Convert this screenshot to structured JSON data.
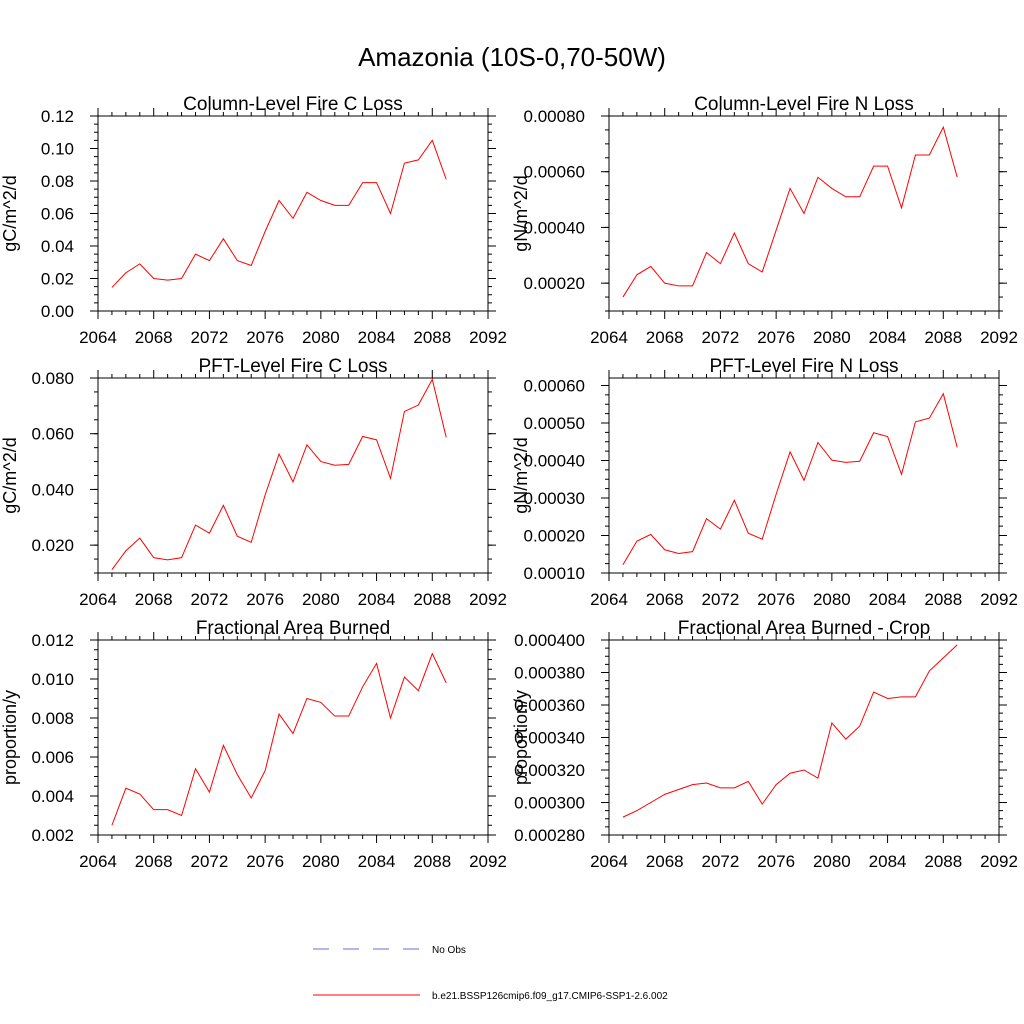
{
  "figure_title": "Amazonia (10S-0,70-50W)",
  "colors": {
    "model_line": "#ff0000",
    "obs_line": "#6b6bd6"
  },
  "legend": {
    "items": [
      {
        "label": "No Obs",
        "style": "dashed",
        "color": "#6b6bd6"
      },
      {
        "label": "b.e21.BSSP126cmip6.f09_g17.CMIP6-SSP1-2.6.002",
        "style": "solid",
        "color": "#ff0000"
      }
    ]
  },
  "chart_data": [
    {
      "type": "line",
      "title": "Column-Level Fire C Loss",
      "xlabel": "",
      "ylabel": "gC/m^2/d",
      "xlim": [
        2064,
        2092
      ],
      "ylim": [
        0,
        0.12
      ],
      "xticks": [
        "2064",
        "2068",
        "2072",
        "2076",
        "2080",
        "2084",
        "2088",
        "2092"
      ],
      "yticks": [
        "0.00",
        "0.02",
        "0.04",
        "0.06",
        "0.08",
        "0.10",
        "0.12"
      ],
      "x": [
        2065,
        2066,
        2067,
        2068,
        2069,
        2070,
        2071,
        2072,
        2073,
        2074,
        2075,
        2076,
        2077,
        2078,
        2079,
        2080,
        2081,
        2082,
        2083,
        2084,
        2085,
        2086,
        2087,
        2088,
        2089
      ],
      "series": [
        {
          "name": "b.e21.BSSP126cmip6.f09_g17.CMIP6-SSP1-2.6.002",
          "values": [
            0.0145,
            0.0235,
            0.029,
            0.02,
            0.019,
            0.02,
            0.035,
            0.031,
            0.0445,
            0.031,
            0.028,
            0.049,
            0.068,
            0.057,
            0.073,
            0.068,
            0.065,
            0.065,
            0.079,
            0.079,
            0.06,
            0.091,
            0.093,
            0.105,
            0.081
          ]
        }
      ]
    },
    {
      "type": "line",
      "title": "Column-Level Fire N Loss",
      "xlabel": "",
      "ylabel": "gN/m^2/d",
      "xlim": [
        2064,
        2092
      ],
      "ylim": [
        0.0001,
        0.0008
      ],
      "xticks": [
        "2064",
        "2068",
        "2072",
        "2076",
        "2080",
        "2084",
        "2088",
        "2092"
      ],
      "yticks": [
        "0.00020",
        "0.00040",
        "0.00060",
        "0.00080"
      ],
      "ytick_values": [
        0.0002,
        0.0004,
        0.0006,
        0.0008
      ],
      "x": [
        2065,
        2066,
        2067,
        2068,
        2069,
        2070,
        2071,
        2072,
        2073,
        2074,
        2075,
        2076,
        2077,
        2078,
        2079,
        2080,
        2081,
        2082,
        2083,
        2084,
        2085,
        2086,
        2087,
        2088,
        2089
      ],
      "series": [
        {
          "name": "b.e21.BSSP126cmip6.f09_g17.CMIP6-SSP1-2.6.002",
          "values": [
            0.00015,
            0.00023,
            0.00026,
            0.0002,
            0.00019,
            0.00019,
            0.00031,
            0.00027,
            0.00038,
            0.00027,
            0.00024,
            0.00039,
            0.00054,
            0.00045,
            0.00058,
            0.00054,
            0.00051,
            0.00051,
            0.00062,
            0.00062,
            0.00047,
            0.00066,
            0.00066,
            0.00076,
            0.00058
          ]
        }
      ]
    },
    {
      "type": "line",
      "title": "PFT-Level Fire C Loss",
      "xlabel": "",
      "ylabel": "gC/m^2/d",
      "xlim": [
        2064,
        2092
      ],
      "ylim": [
        0.01,
        0.08
      ],
      "xticks": [
        "2064",
        "2068",
        "2072",
        "2076",
        "2080",
        "2084",
        "2088",
        "2092"
      ],
      "yticks": [
        "0.020",
        "0.040",
        "0.060",
        "0.080"
      ],
      "ytick_values": [
        0.02,
        0.04,
        0.06,
        0.08
      ],
      "x": [
        2065,
        2066,
        2067,
        2068,
        2069,
        2070,
        2071,
        2072,
        2073,
        2074,
        2075,
        2076,
        2077,
        2078,
        2079,
        2080,
        2081,
        2082,
        2083,
        2084,
        2085,
        2086,
        2087,
        2088,
        2089
      ],
      "series": [
        {
          "name": "b.e21.BSSP126cmip6.f09_g17.CMIP6-SSP1-2.6.002",
          "values": [
            0.0112,
            0.018,
            0.0225,
            0.0155,
            0.0147,
            0.0155,
            0.0272,
            0.0243,
            0.0343,
            0.0232,
            0.021,
            0.038,
            0.0527,
            0.0427,
            0.056,
            0.05,
            0.0487,
            0.049,
            0.059,
            0.0578,
            0.044,
            0.068,
            0.0703,
            0.0795,
            0.0587
          ]
        }
      ]
    },
    {
      "type": "line",
      "title": "PFT-Level Fire N Loss",
      "xlabel": "",
      "ylabel": "gN/m^2/d",
      "xlim": [
        2064,
        2092
      ],
      "ylim": [
        0.0001,
        0.00062
      ],
      "xticks": [
        "2064",
        "2068",
        "2072",
        "2076",
        "2080",
        "2084",
        "2088",
        "2092"
      ],
      "yticks": [
        "0.00010",
        "0.00020",
        "0.00030",
        "0.00040",
        "0.00050",
        "0.00060"
      ],
      "ytick_values": [
        0.0001,
        0.0002,
        0.0003,
        0.0004,
        0.0005,
        0.0006
      ],
      "x": [
        2065,
        2066,
        2067,
        2068,
        2069,
        2070,
        2071,
        2072,
        2073,
        2074,
        2075,
        2076,
        2077,
        2078,
        2079,
        2080,
        2081,
        2082,
        2083,
        2084,
        2085,
        2086,
        2087,
        2088,
        2089
      ],
      "series": [
        {
          "name": "b.e21.BSSP126cmip6.f09_g17.CMIP6-SSP1-2.6.002",
          "values": [
            0.000122,
            0.000185,
            0.000203,
            0.000162,
            0.000152,
            0.000157,
            0.000245,
            0.000217,
            0.000294,
            0.000206,
            0.00019,
            0.00031,
            0.000423,
            0.000347,
            0.000448,
            0.000401,
            0.000395,
            0.000398,
            0.000474,
            0.000464,
            0.000363,
            0.000503,
            0.000513,
            0.000578,
            0.000435
          ]
        }
      ]
    },
    {
      "type": "line",
      "title": "Fractional Area Burned",
      "xlabel": "",
      "ylabel": "proportion/y",
      "xlim": [
        2064,
        2092
      ],
      "ylim": [
        0.002,
        0.012
      ],
      "xticks": [
        "2064",
        "2068",
        "2072",
        "2076",
        "2080",
        "2084",
        "2088",
        "2092"
      ],
      "yticks": [
        "0.002",
        "0.004",
        "0.006",
        "0.008",
        "0.010",
        "0.012"
      ],
      "ytick_values": [
        0.002,
        0.004,
        0.006,
        0.008,
        0.01,
        0.012
      ],
      "x": [
        2065,
        2066,
        2067,
        2068,
        2069,
        2070,
        2071,
        2072,
        2073,
        2074,
        2075,
        2076,
        2077,
        2078,
        2079,
        2080,
        2081,
        2082,
        2083,
        2084,
        2085,
        2086,
        2087,
        2088,
        2089
      ],
      "series": [
        {
          "name": "b.e21.BSSP126cmip6.f09_g17.CMIP6-SSP1-2.6.002",
          "values": [
            0.0025,
            0.0044,
            0.0041,
            0.0033,
            0.0033,
            0.003,
            0.0054,
            0.0042,
            0.0066,
            0.0051,
            0.0039,
            0.0053,
            0.0082,
            0.0072,
            0.009,
            0.0088,
            0.0081,
            0.0081,
            0.0096,
            0.0108,
            0.008,
            0.0101,
            0.0094,
            0.0113,
            0.0098
          ]
        }
      ]
    },
    {
      "type": "line",
      "title": "Fractional Area Burned - Crop",
      "xlabel": "",
      "ylabel": "proportion/y",
      "xlim": [
        2064,
        2092
      ],
      "ylim": [
        0.00028,
        0.0004
      ],
      "xticks": [
        "2064",
        "2068",
        "2072",
        "2076",
        "2080",
        "2084",
        "2088",
        "2092"
      ],
      "yticks": [
        "0.000280",
        "0.000300",
        "0.000320",
        "0.000340",
        "0.000360",
        "0.000380",
        "0.000400"
      ],
      "ytick_values": [
        0.00028,
        0.0003,
        0.00032,
        0.00034,
        0.00036,
        0.00038,
        0.0004
      ],
      "x": [
        2065,
        2066,
        2067,
        2068,
        2069,
        2070,
        2071,
        2072,
        2073,
        2074,
        2075,
        2076,
        2077,
        2078,
        2079,
        2080,
        2081,
        2082,
        2083,
        2084,
        2085,
        2086,
        2087,
        2088,
        2089
      ],
      "series": [
        {
          "name": "b.e21.BSSP126cmip6.f09_g17.CMIP6-SSP1-2.6.002",
          "values": [
            0.000291,
            0.000295,
            0.0003,
            0.000305,
            0.000308,
            0.000311,
            0.000312,
            0.000309,
            0.000309,
            0.000313,
            0.000299,
            0.000311,
            0.000318,
            0.00032,
            0.000315,
            0.000349,
            0.000339,
            0.000347,
            0.000368,
            0.000364,
            0.000365,
            0.000365,
            0.000381,
            0.000389,
            0.000397
          ]
        }
      ]
    }
  ]
}
